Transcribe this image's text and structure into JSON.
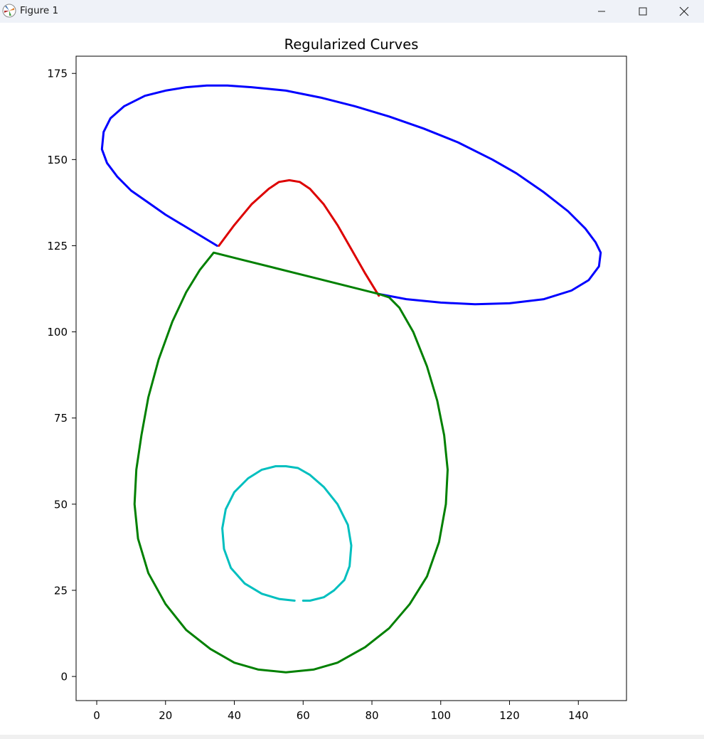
{
  "window": {
    "title": "Figure 1",
    "icon": "matplotlib-icon",
    "controls": {
      "minimize": "minimize-icon",
      "maximize": "maximize-icon",
      "close": "close-icon"
    }
  },
  "chart_data": {
    "type": "line",
    "title": "Regularized Curves",
    "xlabel": "",
    "ylabel": "",
    "xlim": [
      -6,
      154
    ],
    "ylim": [
      -7,
      180
    ],
    "x_ticks": [
      0,
      20,
      40,
      60,
      80,
      100,
      120,
      140
    ],
    "y_ticks": [
      0,
      25,
      50,
      75,
      100,
      125,
      150,
      175
    ],
    "x_tick_labels": [
      "0",
      "20",
      "40",
      "60",
      "80",
      "100",
      "120",
      "140"
    ],
    "y_tick_labels": [
      "0",
      "25",
      "50",
      "75",
      "100",
      "125",
      "150",
      "175"
    ],
    "grid": false,
    "legend": false,
    "series": [
      {
        "name": "ellipse",
        "color": "#0000ff",
        "x": [
          35,
          30,
          25,
          20,
          15,
          10,
          6,
          3,
          1.5,
          2,
          4,
          8,
          14,
          20,
          26,
          32,
          38,
          45,
          55,
          65,
          75,
          85,
          95,
          105,
          115,
          122,
          130,
          137,
          142,
          145,
          146.5,
          146,
          143,
          138,
          130,
          120,
          110,
          100,
          90,
          82
        ],
        "y": [
          125,
          128,
          131,
          134,
          137.5,
          141,
          145,
          149,
          153,
          158,
          162,
          165.5,
          168.5,
          170,
          171,
          171.5,
          171.5,
          171,
          170,
          168,
          165.5,
          162.5,
          159,
          155,
          150,
          146,
          140.5,
          135,
          130,
          126,
          123,
          119,
          115,
          112,
          109.5,
          108.3,
          108,
          108.5,
          109.5,
          111
        ]
      },
      {
        "name": "arch",
        "color": "#dd0000",
        "x": [
          35.5,
          40,
          45,
          50,
          53,
          56,
          59,
          62,
          66,
          70,
          74,
          78,
          82
        ],
        "y": [
          125,
          131,
          137,
          141.5,
          143.5,
          144,
          143.5,
          141.5,
          137,
          131,
          124,
          117,
          110.5
        ]
      },
      {
        "name": "teardrop",
        "color": "#008000",
        "x": [
          82,
          72,
          62,
          52,
          42,
          34,
          30,
          26,
          22,
          18,
          15,
          13,
          11.5,
          11,
          12,
          15,
          20,
          26,
          33,
          40,
          47,
          55,
          63,
          70,
          78,
          85,
          91,
          96,
          99.5,
          101.5,
          102,
          101,
          99,
          96,
          92,
          88,
          85,
          82
        ],
        "y": [
          111,
          113.5,
          116,
          118.5,
          121,
          123,
          118,
          111.5,
          103,
          92,
          81,
          70,
          60,
          50,
          40,
          30,
          21,
          13.5,
          8,
          4,
          2,
          1.2,
          2,
          4,
          8.5,
          14,
          21,
          29,
          39,
          50,
          60,
          70,
          80,
          90,
          100,
          107,
          110,
          111
        ]
      },
      {
        "name": "circle",
        "color": "#00bfbf",
        "x": [
          57.5,
          53,
          48,
          43,
          39,
          37,
          36.5,
          37.5,
          40,
          44,
          48,
          52,
          55,
          58.5,
          62,
          66,
          70,
          73,
          74,
          73.5,
          72,
          69,
          66,
          62,
          60
        ],
        "y": [
          22,
          22.5,
          24,
          27,
          31.5,
          37,
          43,
          48.5,
          53.5,
          57.5,
          60,
          61,
          61,
          60.5,
          58.5,
          55,
          50,
          44,
          38,
          32,
          28,
          25,
          23,
          22,
          22
        ]
      }
    ]
  }
}
